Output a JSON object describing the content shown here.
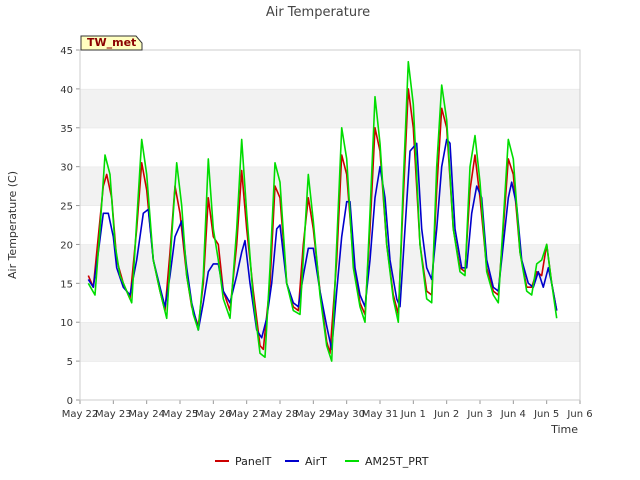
{
  "chart_data": {
    "type": "line",
    "title": "Air Temperature",
    "xlabel": "Time",
    "ylabel": "Air Temperature (C)",
    "station_badge": "TW_met",
    "ylim": [
      0,
      45
    ],
    "yticks": [
      0,
      5,
      10,
      15,
      20,
      25,
      30,
      35,
      40,
      45
    ],
    "xlim": [
      0,
      15
    ],
    "xticks": [
      {
        "x": 0,
        "label": "May 22"
      },
      {
        "x": 1,
        "label": "May 23"
      },
      {
        "x": 2,
        "label": "May 24"
      },
      {
        "x": 3,
        "label": "May 25"
      },
      {
        "x": 4,
        "label": "May 26"
      },
      {
        "x": 5,
        "label": "May 27"
      },
      {
        "x": 6,
        "label": "May 28"
      },
      {
        "x": 7,
        "label": "May 29"
      },
      {
        "x": 8,
        "label": "May 30"
      },
      {
        "x": 9,
        "label": "May 31"
      },
      {
        "x": 10,
        "label": "Jun 1"
      },
      {
        "x": 11,
        "label": "Jun 2"
      },
      {
        "x": 12,
        "label": "Jun 3"
      },
      {
        "x": 13,
        "label": "Jun 4"
      },
      {
        "x": 14,
        "label": "Jun 5"
      },
      {
        "x": 15,
        "label": "Jun 6"
      }
    ],
    "grid": "horizontal bands",
    "legend_position": "bottom",
    "series": [
      {
        "name": "PanelT",
        "color": "#cc0000",
        "points": [
          [
            0.25,
            16.0
          ],
          [
            0.4,
            14.5
          ],
          [
            0.55,
            21.0
          ],
          [
            0.7,
            27.5
          ],
          [
            0.8,
            29.0
          ],
          [
            0.95,
            26.0
          ],
          [
            1.1,
            18.0
          ],
          [
            1.3,
            15.0
          ],
          [
            1.5,
            13.0
          ],
          [
            1.7,
            22.0
          ],
          [
            1.85,
            30.5
          ],
          [
            2.0,
            27.0
          ],
          [
            2.2,
            18.0
          ],
          [
            2.4,
            14.0
          ],
          [
            2.55,
            11.5
          ],
          [
            2.7,
            19.0
          ],
          [
            2.85,
            27.5
          ],
          [
            3.0,
            24.0
          ],
          [
            3.2,
            16.0
          ],
          [
            3.35,
            12.0
          ],
          [
            3.55,
            9.5
          ],
          [
            3.7,
            15.0
          ],
          [
            3.85,
            26.0
          ],
          [
            4.0,
            21.0
          ],
          [
            4.15,
            20.0
          ],
          [
            4.3,
            14.0
          ],
          [
            4.5,
            11.5
          ],
          [
            4.7,
            20.0
          ],
          [
            4.85,
            29.5
          ],
          [
            5.0,
            22.0
          ],
          [
            5.2,
            14.0
          ],
          [
            5.4,
            7.0
          ],
          [
            5.5,
            6.5
          ],
          [
            5.7,
            15.0
          ],
          [
            5.85,
            27.5
          ],
          [
            6.0,
            26.0
          ],
          [
            6.2,
            15.0
          ],
          [
            6.4,
            12.0
          ],
          [
            6.55,
            11.5
          ],
          [
            6.7,
            20.0
          ],
          [
            6.85,
            26.0
          ],
          [
            7.0,
            22.0
          ],
          [
            7.2,
            14.0
          ],
          [
            7.4,
            7.5
          ],
          [
            7.5,
            6.0
          ],
          [
            7.7,
            18.0
          ],
          [
            7.85,
            31.5
          ],
          [
            8.0,
            29.0
          ],
          [
            8.2,
            18.0
          ],
          [
            8.4,
            12.5
          ],
          [
            8.55,
            11.0
          ],
          [
            8.7,
            22.0
          ],
          [
            8.85,
            35.0
          ],
          [
            9.0,
            32.0
          ],
          [
            9.2,
            20.0
          ],
          [
            9.4,
            13.5
          ],
          [
            9.55,
            11.0
          ],
          [
            9.7,
            26.0
          ],
          [
            9.85,
            40.0
          ],
          [
            10.0,
            35.0
          ],
          [
            10.2,
            20.0
          ],
          [
            10.4,
            14.0
          ],
          [
            10.55,
            13.5
          ],
          [
            10.7,
            27.0
          ],
          [
            10.85,
            37.5
          ],
          [
            11.0,
            35.0
          ],
          [
            11.2,
            22.0
          ],
          [
            11.4,
            17.0
          ],
          [
            11.55,
            16.5
          ],
          [
            11.7,
            27.0
          ],
          [
            11.85,
            31.5
          ],
          [
            12.0,
            26.0
          ],
          [
            12.2,
            17.0
          ],
          [
            12.4,
            14.0
          ],
          [
            12.55,
            13.5
          ],
          [
            12.7,
            22.0
          ],
          [
            12.85,
            31.0
          ],
          [
            13.0,
            29.0
          ],
          [
            13.2,
            19.0
          ],
          [
            13.4,
            14.5
          ],
          [
            13.55,
            14.5
          ],
          [
            13.7,
            16.5
          ],
          [
            13.85,
            16.0
          ],
          [
            14.0,
            20.0
          ],
          [
            14.15,
            15.0
          ],
          [
            14.3,
            11.5
          ]
        ]
      },
      {
        "name": "AirT",
        "color": "#0000cc",
        "points": [
          [
            0.25,
            15.5
          ],
          [
            0.4,
            14.5
          ],
          [
            0.55,
            19.0
          ],
          [
            0.7,
            24.0
          ],
          [
            0.85,
            24.0
          ],
          [
            1.0,
            21.0
          ],
          [
            1.1,
            17.0
          ],
          [
            1.3,
            14.5
          ],
          [
            1.5,
            13.5
          ],
          [
            1.7,
            18.0
          ],
          [
            1.9,
            24.0
          ],
          [
            2.05,
            24.5
          ],
          [
            2.2,
            18.0
          ],
          [
            2.4,
            14.5
          ],
          [
            2.55,
            12.0
          ],
          [
            2.7,
            16.0
          ],
          [
            2.85,
            21.0
          ],
          [
            3.05,
            23.0
          ],
          [
            3.2,
            17.0
          ],
          [
            3.35,
            12.5
          ],
          [
            3.55,
            9.0
          ],
          [
            3.7,
            12.5
          ],
          [
            3.85,
            16.5
          ],
          [
            4.0,
            17.5
          ],
          [
            4.15,
            17.5
          ],
          [
            4.3,
            14.0
          ],
          [
            4.5,
            12.5
          ],
          [
            4.7,
            16.0
          ],
          [
            4.85,
            19.0
          ],
          [
            4.95,
            20.5
          ],
          [
            5.1,
            15.0
          ],
          [
            5.3,
            9.0
          ],
          [
            5.45,
            8.0
          ],
          [
            5.6,
            10.5
          ],
          [
            5.75,
            15.0
          ],
          [
            5.9,
            22.0
          ],
          [
            6.0,
            22.5
          ],
          [
            6.2,
            15.0
          ],
          [
            6.4,
            12.5
          ],
          [
            6.55,
            12.0
          ],
          [
            6.7,
            16.0
          ],
          [
            6.85,
            19.5
          ],
          [
            7.0,
            19.5
          ],
          [
            7.2,
            14.0
          ],
          [
            7.4,
            9.5
          ],
          [
            7.55,
            6.5
          ],
          [
            7.7,
            14.0
          ],
          [
            7.85,
            21.0
          ],
          [
            8.0,
            25.5
          ],
          [
            8.1,
            25.5
          ],
          [
            8.25,
            17.0
          ],
          [
            8.4,
            13.5
          ],
          [
            8.55,
            12.0
          ],
          [
            8.7,
            18.0
          ],
          [
            8.85,
            26.0
          ],
          [
            9.0,
            30.0
          ],
          [
            9.15,
            26.0
          ],
          [
            9.3,
            18.0
          ],
          [
            9.5,
            13.0
          ],
          [
            9.6,
            12.0
          ],
          [
            9.75,
            22.0
          ],
          [
            9.9,
            32.0
          ],
          [
            10.1,
            33.0
          ],
          [
            10.25,
            22.0
          ],
          [
            10.4,
            17.0
          ],
          [
            10.55,
            15.5
          ],
          [
            10.7,
            22.0
          ],
          [
            10.85,
            30.0
          ],
          [
            11.0,
            33.5
          ],
          [
            11.1,
            33.0
          ],
          [
            11.25,
            22.0
          ],
          [
            11.45,
            17.0
          ],
          [
            11.6,
            17.0
          ],
          [
            11.75,
            24.0
          ],
          [
            11.9,
            27.5
          ],
          [
            12.05,
            26.0
          ],
          [
            12.2,
            18.0
          ],
          [
            12.4,
            14.5
          ],
          [
            12.55,
            14.0
          ],
          [
            12.7,
            20.0
          ],
          [
            12.85,
            26.0
          ],
          [
            12.95,
            28.0
          ],
          [
            13.1,
            25.0
          ],
          [
            13.25,
            18.0
          ],
          [
            13.45,
            15.0
          ],
          [
            13.6,
            14.5
          ],
          [
            13.75,
            16.5
          ],
          [
            13.9,
            14.5
          ],
          [
            14.05,
            17.0
          ],
          [
            14.15,
            15.0
          ],
          [
            14.3,
            11.5
          ]
        ]
      },
      {
        "name": "AM25T_PRT",
        "color": "#00dd00",
        "points": [
          [
            0.25,
            15.0
          ],
          [
            0.45,
            13.5
          ],
          [
            0.6,
            22.0
          ],
          [
            0.75,
            31.5
          ],
          [
            0.9,
            29.0
          ],
          [
            1.05,
            20.0
          ],
          [
            1.2,
            16.0
          ],
          [
            1.4,
            14.0
          ],
          [
            1.55,
            12.5
          ],
          [
            1.7,
            23.0
          ],
          [
            1.85,
            33.5
          ],
          [
            2.0,
            29.0
          ],
          [
            2.2,
            18.0
          ],
          [
            2.4,
            14.0
          ],
          [
            2.6,
            10.5
          ],
          [
            2.75,
            21.0
          ],
          [
            2.9,
            30.5
          ],
          [
            3.05,
            25.0
          ],
          [
            3.2,
            16.0
          ],
          [
            3.4,
            11.0
          ],
          [
            3.55,
            9.0
          ],
          [
            3.7,
            16.0
          ],
          [
            3.85,
            31.0
          ],
          [
            4.0,
            22.0
          ],
          [
            4.15,
            18.0
          ],
          [
            4.3,
            13.0
          ],
          [
            4.5,
            10.5
          ],
          [
            4.7,
            22.0
          ],
          [
            4.85,
            33.5
          ],
          [
            5.0,
            24.0
          ],
          [
            5.2,
            13.0
          ],
          [
            5.4,
            6.0
          ],
          [
            5.55,
            5.5
          ],
          [
            5.7,
            17.0
          ],
          [
            5.85,
            30.5
          ],
          [
            6.0,
            28.0
          ],
          [
            6.2,
            15.0
          ],
          [
            6.4,
            11.5
          ],
          [
            6.6,
            11.0
          ],
          [
            6.75,
            22.0
          ],
          [
            6.85,
            29.0
          ],
          [
            7.0,
            23.0
          ],
          [
            7.2,
            13.5
          ],
          [
            7.4,
            7.0
          ],
          [
            7.55,
            5.0
          ],
          [
            7.7,
            20.0
          ],
          [
            7.85,
            35.0
          ],
          [
            8.0,
            31.0
          ],
          [
            8.2,
            17.0
          ],
          [
            8.4,
            12.0
          ],
          [
            8.55,
            10.0
          ],
          [
            8.7,
            24.0
          ],
          [
            8.85,
            39.0
          ],
          [
            9.0,
            33.0
          ],
          [
            9.2,
            20.0
          ],
          [
            9.4,
            13.0
          ],
          [
            9.55,
            10.0
          ],
          [
            9.7,
            28.0
          ],
          [
            9.85,
            43.5
          ],
          [
            10.0,
            38.0
          ],
          [
            10.2,
            20.0
          ],
          [
            10.4,
            13.0
          ],
          [
            10.55,
            12.5
          ],
          [
            10.7,
            30.0
          ],
          [
            10.85,
            40.5
          ],
          [
            11.0,
            36.0
          ],
          [
            11.2,
            22.0
          ],
          [
            11.4,
            16.5
          ],
          [
            11.55,
            16.0
          ],
          [
            11.7,
            30.0
          ],
          [
            11.85,
            34.0
          ],
          [
            12.0,
            28.0
          ],
          [
            12.2,
            16.5
          ],
          [
            12.4,
            13.5
          ],
          [
            12.55,
            12.5
          ],
          [
            12.7,
            23.0
          ],
          [
            12.85,
            33.5
          ],
          [
            13.0,
            31.0
          ],
          [
            13.2,
            19.0
          ],
          [
            13.4,
            14.0
          ],
          [
            13.55,
            13.5
          ],
          [
            13.7,
            17.5
          ],
          [
            13.85,
            18.0
          ],
          [
            14.0,
            20.0
          ],
          [
            14.15,
            15.0
          ],
          [
            14.3,
            10.5
          ]
        ]
      }
    ]
  }
}
